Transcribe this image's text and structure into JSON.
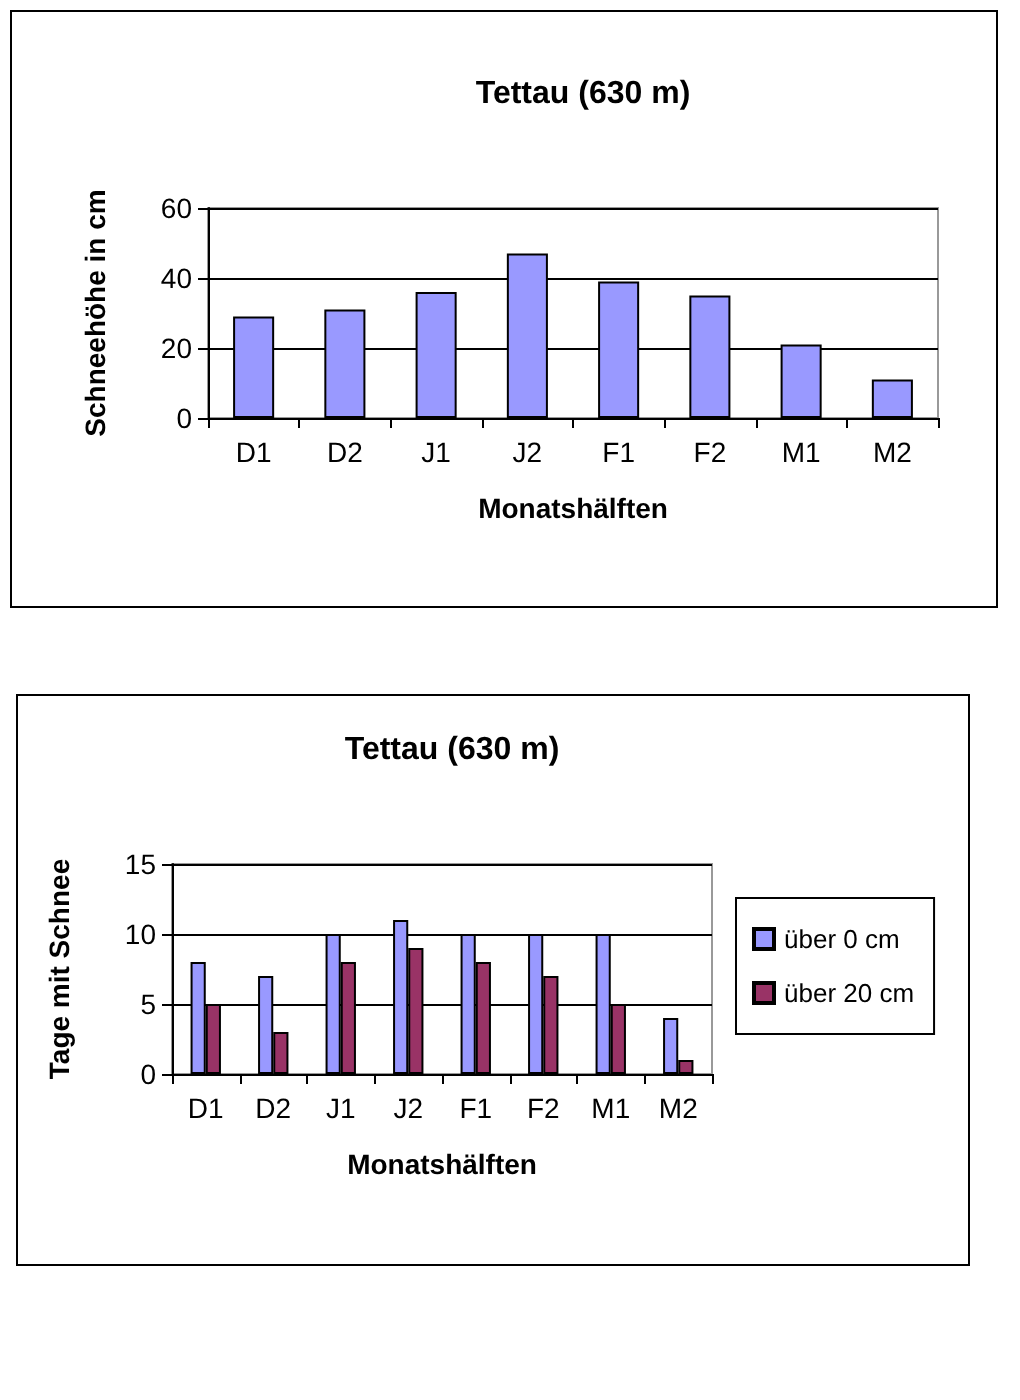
{
  "chart_data": [
    {
      "type": "bar",
      "title": "Tettau (630 m)",
      "xlabel": "Monatshälften",
      "ylabel": "Schneehöhe in cm",
      "categories": [
        "D1",
        "D2",
        "J1",
        "J2",
        "F1",
        "F2",
        "M1",
        "M2"
      ],
      "series": [
        {
          "color": "#9999ff",
          "values": [
            29,
            31,
            36,
            47,
            39,
            35,
            21,
            11
          ]
        }
      ],
      "ylim": [
        0,
        60
      ],
      "yticks": [
        0,
        20,
        40,
        60
      ],
      "grid": "y",
      "legend": false
    },
    {
      "type": "bar",
      "title": "Tettau (630 m)",
      "xlabel": "Monatshälften",
      "ylabel": "Tage mit Schnee",
      "categories": [
        "D1",
        "D2",
        "J1",
        "J2",
        "F1",
        "F2",
        "M1",
        "M2"
      ],
      "series": [
        {
          "name": "über 0 cm",
          "color": "#9999ff",
          "values": [
            8,
            7,
            10,
            11,
            10,
            10,
            10,
            4
          ]
        },
        {
          "name": "über 20 cm",
          "color": "#993366",
          "values": [
            5,
            3,
            8,
            9,
            8,
            7,
            5,
            1
          ]
        }
      ],
      "ylim": [
        0,
        15
      ],
      "yticks": [
        0,
        5,
        10,
        15
      ],
      "grid": "y",
      "legend": "right"
    }
  ]
}
